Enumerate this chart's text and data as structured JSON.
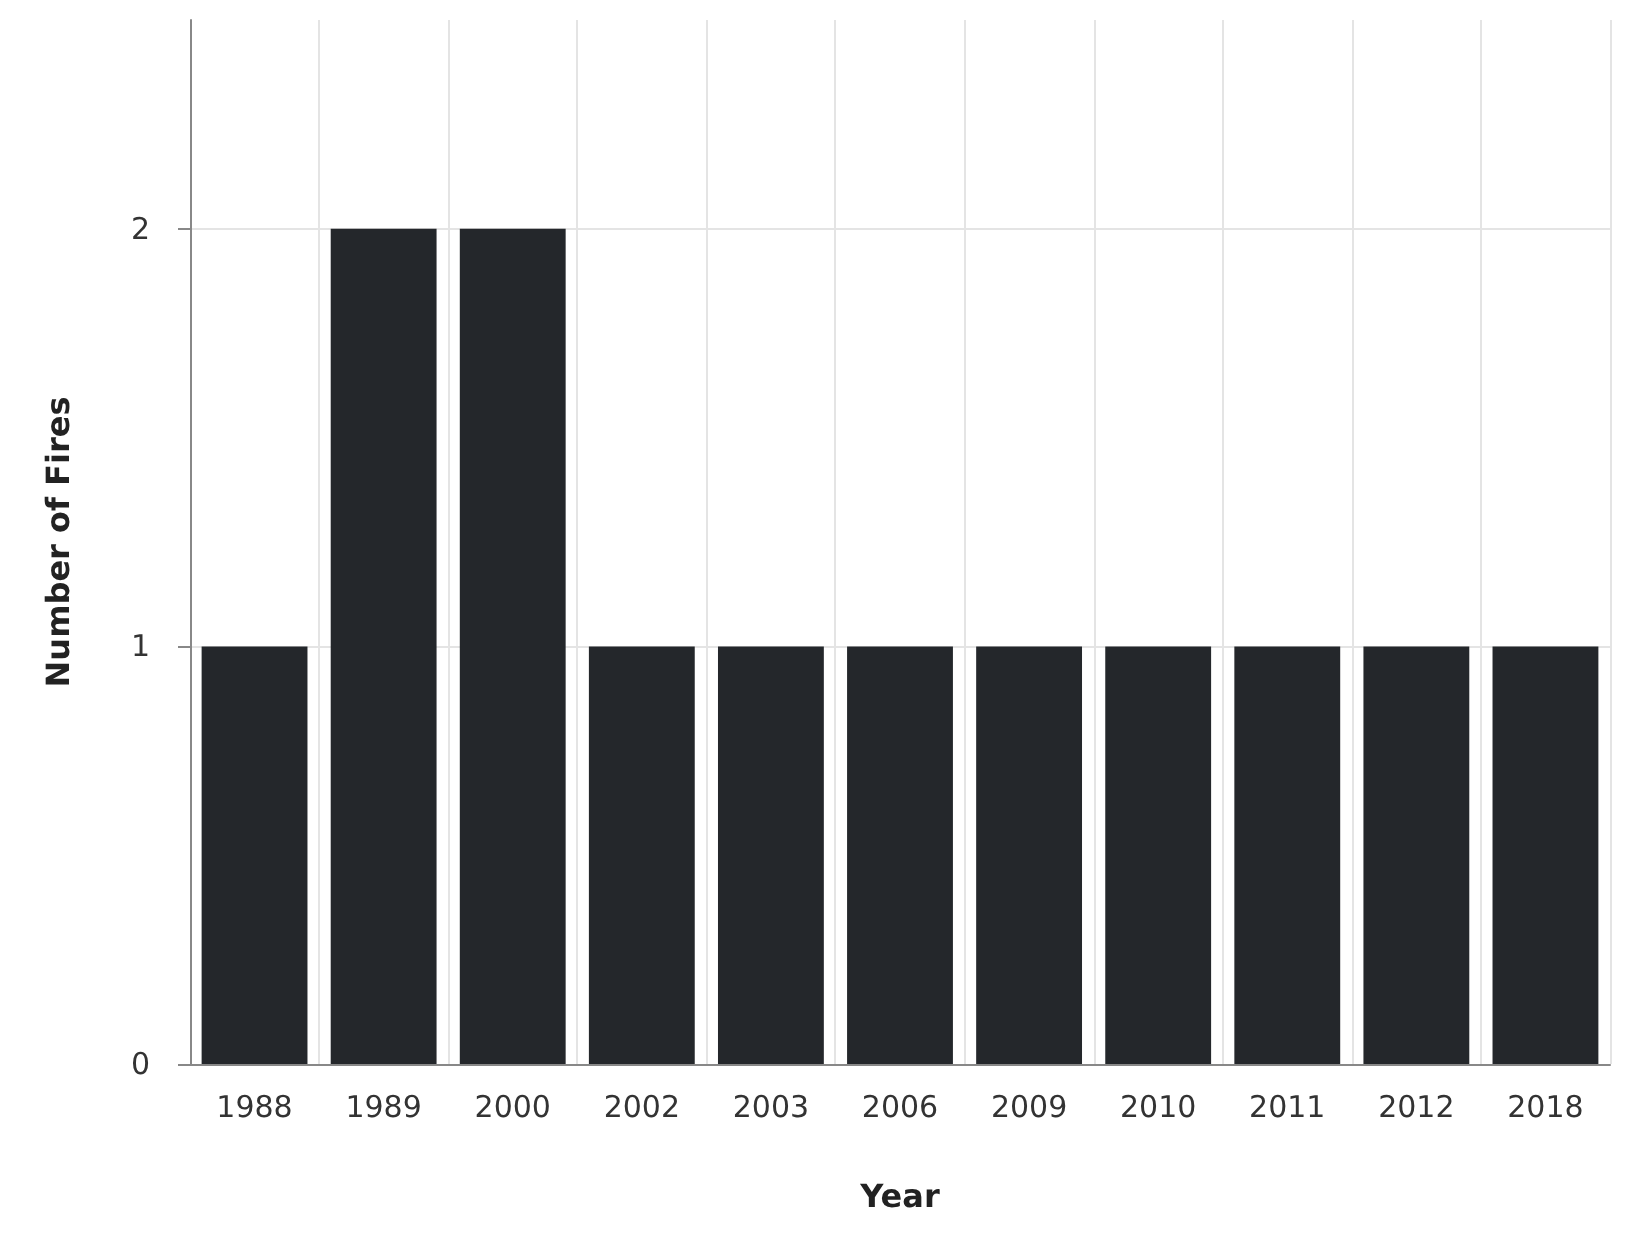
{
  "chart_data": {
    "type": "bar",
    "xlabel": "Year",
    "ylabel": "Number of Fires",
    "categories": [
      "1988",
      "1989",
      "2000",
      "2002",
      "2003",
      "2006",
      "2009",
      "2010",
      "2011",
      "2012",
      "2018"
    ],
    "values": [
      1,
      2,
      2,
      1,
      1,
      1,
      1,
      1,
      1,
      1,
      1
    ],
    "color": "#24272b",
    "ylim": [
      0,
      2.5
    ],
    "yticks": [
      0,
      1,
      2
    ],
    "grid": true
  }
}
